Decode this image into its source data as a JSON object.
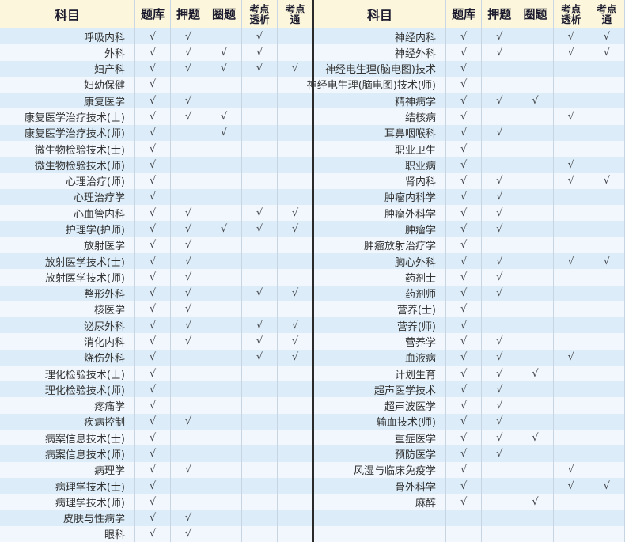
{
  "check_symbol": "√",
  "headers": {
    "subject": "科目",
    "tiku": "题库",
    "yati": "押题",
    "quanti": "圈题",
    "kaodian_touxi_line1": "考点",
    "kaodian_touxi_line2": "透析",
    "kaodian_tong_line1": "考点",
    "kaodian_tong_line2": "通"
  },
  "colors": {
    "header_bg": "#FBF6DC",
    "row_odd": "#DCEDF9",
    "row_even": "#F1F7FD",
    "column_border": "#C7D5E3",
    "center_divider": "#2A2A2A",
    "header_text": "#1C1C2E",
    "body_text": "#333333"
  },
  "tables": {
    "left": {
      "rows": [
        {
          "subject": "呼吸内科",
          "checks": [
            1,
            1,
            0,
            1,
            0
          ]
        },
        {
          "subject": "外科",
          "checks": [
            1,
            1,
            1,
            1,
            0
          ]
        },
        {
          "subject": "妇产科",
          "checks": [
            1,
            1,
            1,
            1,
            1
          ]
        },
        {
          "subject": "妇幼保健",
          "checks": [
            1,
            0,
            0,
            0,
            0
          ]
        },
        {
          "subject": "康复医学",
          "checks": [
            1,
            1,
            0,
            0,
            0
          ]
        },
        {
          "subject": "康复医学治疗技术(士)",
          "checks": [
            1,
            1,
            1,
            0,
            0
          ]
        },
        {
          "subject": "康复医学治疗技术(师)",
          "checks": [
            1,
            0,
            1,
            0,
            0
          ]
        },
        {
          "subject": "微生物检验技术(士)",
          "checks": [
            1,
            0,
            0,
            0,
            0
          ]
        },
        {
          "subject": "微生物检验技术(师)",
          "checks": [
            1,
            0,
            0,
            0,
            0
          ]
        },
        {
          "subject": "心理治疗(师)",
          "checks": [
            1,
            0,
            0,
            0,
            0
          ]
        },
        {
          "subject": "心理治疗学",
          "checks": [
            1,
            0,
            0,
            0,
            0
          ]
        },
        {
          "subject": "心血管内科",
          "checks": [
            1,
            1,
            0,
            1,
            1
          ]
        },
        {
          "subject": "护理学(护师)",
          "checks": [
            1,
            1,
            1,
            1,
            1
          ]
        },
        {
          "subject": "放射医学",
          "checks": [
            1,
            1,
            0,
            0,
            0
          ]
        },
        {
          "subject": "放射医学技术(士)",
          "checks": [
            1,
            1,
            0,
            0,
            0
          ]
        },
        {
          "subject": "放射医学技术(师)",
          "checks": [
            1,
            1,
            0,
            0,
            0
          ]
        },
        {
          "subject": "整形外科",
          "checks": [
            1,
            1,
            0,
            1,
            1
          ]
        },
        {
          "subject": "核医学",
          "checks": [
            1,
            1,
            0,
            0,
            0
          ]
        },
        {
          "subject": "泌尿外科",
          "checks": [
            1,
            1,
            0,
            1,
            1
          ]
        },
        {
          "subject": "消化内科",
          "checks": [
            1,
            1,
            0,
            1,
            1
          ]
        },
        {
          "subject": "烧伤外科",
          "checks": [
            1,
            0,
            0,
            1,
            1
          ]
        },
        {
          "subject": "理化检验技术(士)",
          "checks": [
            1,
            0,
            0,
            0,
            0
          ]
        },
        {
          "subject": "理化检验技术(师)",
          "checks": [
            1,
            0,
            0,
            0,
            0
          ]
        },
        {
          "subject": "疼痛学",
          "checks": [
            1,
            0,
            0,
            0,
            0
          ]
        },
        {
          "subject": "疾病控制",
          "checks": [
            1,
            1,
            0,
            0,
            0
          ]
        },
        {
          "subject": "病案信息技术(士)",
          "checks": [
            1,
            0,
            0,
            0,
            0
          ]
        },
        {
          "subject": "病案信息技术(师)",
          "checks": [
            1,
            0,
            0,
            0,
            0
          ]
        },
        {
          "subject": "病理学",
          "checks": [
            1,
            1,
            0,
            0,
            0
          ]
        },
        {
          "subject": "病理学技术(士)",
          "checks": [
            1,
            0,
            0,
            0,
            0
          ]
        },
        {
          "subject": "病理学技术(师)",
          "checks": [
            1,
            0,
            0,
            0,
            0
          ]
        },
        {
          "subject": "皮肤与性病学",
          "checks": [
            1,
            1,
            0,
            0,
            0
          ]
        },
        {
          "subject": "眼科",
          "checks": [
            1,
            1,
            0,
            0,
            0
          ]
        }
      ]
    },
    "right": {
      "rows": [
        {
          "subject": "神经内科",
          "checks": [
            1,
            1,
            0,
            1,
            1
          ]
        },
        {
          "subject": "神经外科",
          "checks": [
            1,
            1,
            0,
            1,
            1
          ]
        },
        {
          "subject": "神经电生理(脑电图)技术",
          "checks": [
            1,
            0,
            0,
            0,
            0
          ]
        },
        {
          "subject": "神经电生理(脑电图)技术(师)",
          "checks": [
            1,
            0,
            0,
            0,
            0
          ]
        },
        {
          "subject": "精神病学",
          "checks": [
            1,
            1,
            1,
            0,
            0
          ]
        },
        {
          "subject": "结核病",
          "checks": [
            1,
            0,
            0,
            1,
            0
          ]
        },
        {
          "subject": "耳鼻咽喉科",
          "checks": [
            1,
            1,
            0,
            0,
            0
          ]
        },
        {
          "subject": "职业卫生",
          "checks": [
            1,
            0,
            0,
            0,
            0
          ]
        },
        {
          "subject": "职业病",
          "checks": [
            1,
            0,
            0,
            1,
            0
          ]
        },
        {
          "subject": "肾内科",
          "checks": [
            1,
            1,
            0,
            1,
            1
          ]
        },
        {
          "subject": "肿瘤内科学",
          "checks": [
            1,
            1,
            0,
            0,
            0
          ]
        },
        {
          "subject": "肿瘤外科学",
          "checks": [
            1,
            1,
            0,
            0,
            0
          ]
        },
        {
          "subject": "肿瘤学",
          "checks": [
            1,
            1,
            0,
            0,
            0
          ]
        },
        {
          "subject": "肿瘤放射治疗学",
          "checks": [
            1,
            0,
            0,
            0,
            0
          ]
        },
        {
          "subject": "胸心外科",
          "checks": [
            1,
            1,
            0,
            1,
            1
          ]
        },
        {
          "subject": "药剂士",
          "checks": [
            1,
            1,
            0,
            0,
            0
          ]
        },
        {
          "subject": "药剂师",
          "checks": [
            1,
            1,
            0,
            0,
            0
          ]
        },
        {
          "subject": "营养(士)",
          "checks": [
            1,
            0,
            0,
            0,
            0
          ]
        },
        {
          "subject": "营养(师)",
          "checks": [
            1,
            0,
            0,
            0,
            0
          ]
        },
        {
          "subject": "营养学",
          "checks": [
            1,
            1,
            0,
            0,
            0
          ]
        },
        {
          "subject": "血液病",
          "checks": [
            1,
            1,
            0,
            1,
            0
          ]
        },
        {
          "subject": "计划生育",
          "checks": [
            1,
            1,
            1,
            0,
            0
          ]
        },
        {
          "subject": "超声医学技术",
          "checks": [
            1,
            1,
            0,
            0,
            0
          ]
        },
        {
          "subject": "超声波医学",
          "checks": [
            1,
            1,
            0,
            0,
            0
          ]
        },
        {
          "subject": "输血技术(师)",
          "checks": [
            1,
            1,
            0,
            0,
            0
          ]
        },
        {
          "subject": "重症医学",
          "checks": [
            1,
            1,
            1,
            0,
            0
          ]
        },
        {
          "subject": "预防医学",
          "checks": [
            1,
            1,
            0,
            0,
            0
          ]
        },
        {
          "subject": "风湿与临床免疫学",
          "checks": [
            1,
            0,
            0,
            1,
            0
          ]
        },
        {
          "subject": "骨外科学",
          "checks": [
            1,
            0,
            0,
            1,
            1
          ]
        },
        {
          "subject": "麻醉",
          "checks": [
            1,
            0,
            1,
            0,
            0
          ]
        },
        {
          "subject": "",
          "checks": [
            0,
            0,
            0,
            0,
            0
          ]
        },
        {
          "subject": "",
          "checks": [
            0,
            0,
            0,
            0,
            0
          ]
        }
      ]
    }
  }
}
